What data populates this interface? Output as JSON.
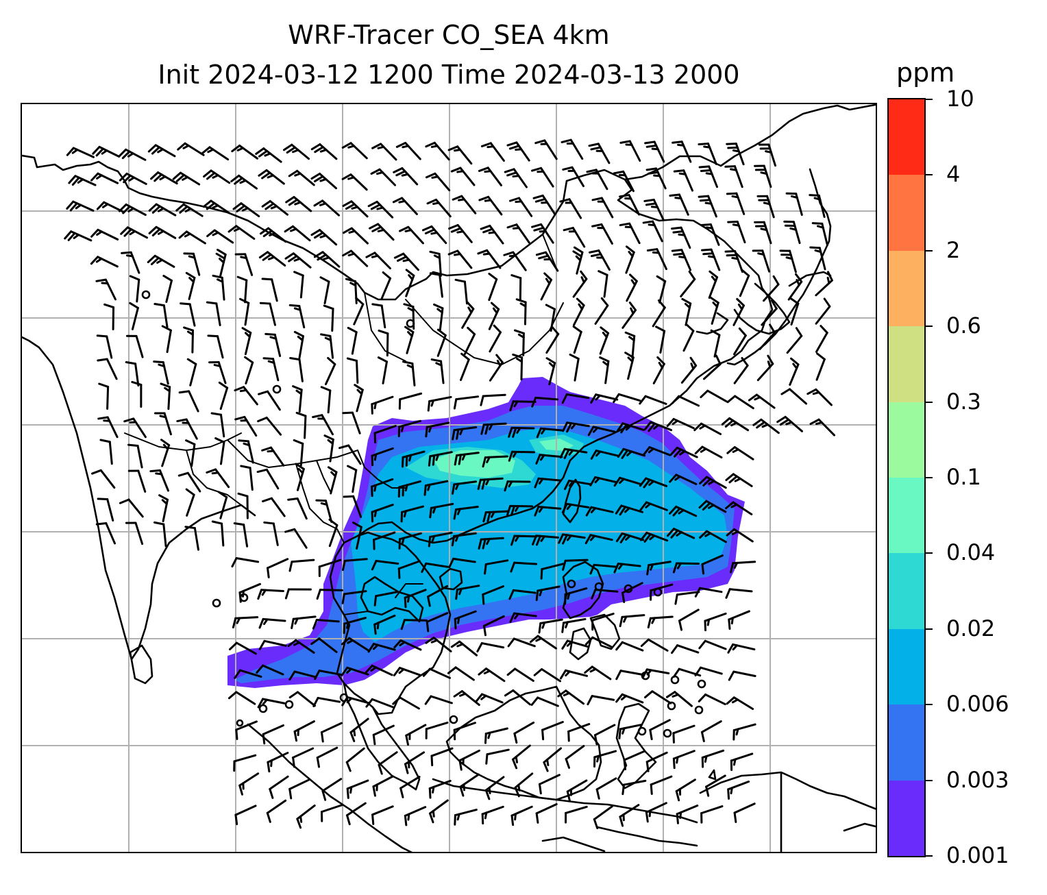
{
  "title": {
    "line1": "WRF-Tracer CO_SEA 4km",
    "line2": "Init 2024-03-12 1200 Time 2024-03-13 2000"
  },
  "colorbar": {
    "unit": "ppm",
    "levels": [
      "0.001",
      "0.003",
      "0.006",
      "0.02",
      "0.04",
      "0.1",
      "0.3",
      "0.6",
      "2",
      "4",
      "10"
    ],
    "colors": [
      "#6a2cfb",
      "#3474f2",
      "#03b1e8",
      "#2fd9d3",
      "#69f8c1",
      "#9bfa9e",
      "#cfe083",
      "#feb061",
      "#ff7440",
      "#ff2b16"
    ]
  },
  "map": {
    "gridlines": true,
    "grid_color": "#b0b0b0",
    "coastline_color": "#000000",
    "wind_barb_color": "#000000",
    "plume_levels_shown": [
      "0.001",
      "0.003",
      "0.006",
      "0.02",
      "0.04"
    ]
  }
}
